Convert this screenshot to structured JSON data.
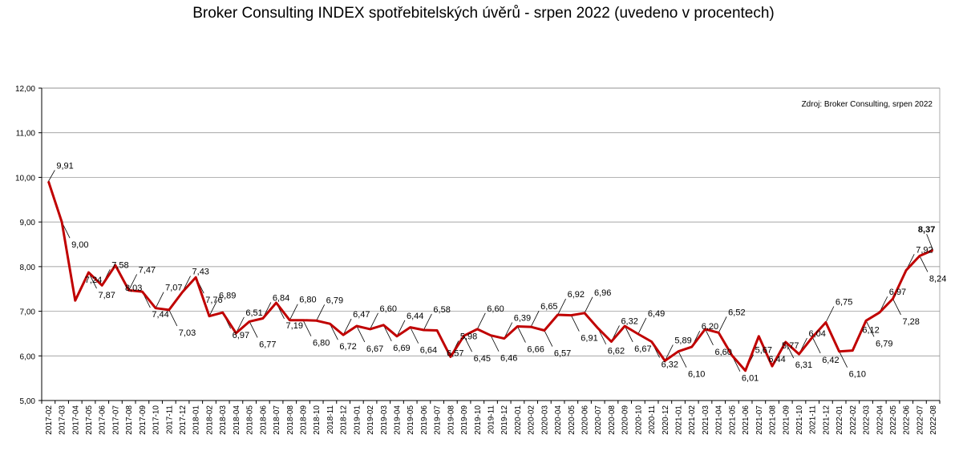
{
  "title": "Broker Consulting INDEX spotřebitelských úvěrů - srpen 2022 (uvedeno v procentech)",
  "source_note": "Zdroj: Broker Consulting, srpen 2022",
  "colors": {
    "line": "#c00000",
    "last_label": "#ff0000",
    "grid": "#888888"
  },
  "chart_data": {
    "type": "line",
    "title": "Broker Consulting INDEX spotřebitelských úvěrů - srpen 2022 (uvedeno v procentech)",
    "ylim": [
      5,
      12
    ],
    "yticks": [
      "5,00",
      "6,00",
      "7,00",
      "8,00",
      "9,00",
      "10,00",
      "11,00",
      "12,00"
    ],
    "grid": "horizontal",
    "categories": [
      "2017-02",
      "2017-03",
      "2017-04",
      "2017-05",
      "2017-06",
      "2017-07",
      "2017-08",
      "2017-09",
      "2017-10",
      "2017-11",
      "2017-12",
      "2018-01",
      "2018-02",
      "2018-03",
      "2018-04",
      "2018-05",
      "2018-06",
      "2018-07",
      "2018-08",
      "2018-09",
      "2018-10",
      "2018-11",
      "2018-12",
      "2019-01",
      "2019-02",
      "2019-03",
      "2019-04",
      "2019-05",
      "2019-06",
      "2019-07",
      "2019-08",
      "2019-09",
      "2019-10",
      "2019-11",
      "2019-12",
      "2020-01",
      "2020-02",
      "2020-03",
      "2020-04",
      "2020-05",
      "2020-06",
      "2020-07",
      "2020-08",
      "2020-09",
      "2020-10",
      "2020-11",
      "2020-12",
      "2021-01",
      "2021-02",
      "2021-03",
      "2021-04",
      "2021-05",
      "2021-06",
      "2021-07",
      "2021-08",
      "2021-09",
      "2021-10",
      "2021-11",
      "2021-12",
      "2022-01",
      "2022-02",
      "2022-03",
      "2022-04",
      "2022-05",
      "2022-06",
      "2022-07",
      "2022-08"
    ],
    "values": [
      9.91,
      9.0,
      7.24,
      7.87,
      7.58,
      8.03,
      7.47,
      7.44,
      7.07,
      7.03,
      7.43,
      7.76,
      6.89,
      6.97,
      6.51,
      6.77,
      6.84,
      7.19,
      6.8,
      6.8,
      6.79,
      6.72,
      6.47,
      6.67,
      6.6,
      6.69,
      6.44,
      6.64,
      6.58,
      6.57,
      5.98,
      6.45,
      6.6,
      6.46,
      6.39,
      6.66,
      6.65,
      6.57,
      6.92,
      6.91,
      6.96,
      6.62,
      6.32,
      6.67,
      6.49,
      6.32,
      5.89,
      6.1,
      6.2,
      6.6,
      6.52,
      6.01,
      5.67,
      6.44,
      5.77,
      6.31,
      6.04,
      6.42,
      6.75,
      6.1,
      6.12,
      6.79,
      6.97,
      7.28,
      7.92,
      8.24,
      8.37
    ],
    "labels": [
      "9,91",
      "9,00",
      "7,24",
      "7,87",
      "7,58",
      "8,03",
      "7,47",
      "7,44",
      "7,07",
      "7,03",
      "7,43",
      "7,76",
      "6,89",
      "6,97",
      "6,51",
      "6,77",
      "6,84",
      "7,19",
      "6,80",
      "6,80",
      "6,79",
      "6,72",
      "6,47",
      "6,67",
      "6,60",
      "6,69",
      "6,44",
      "6,64",
      "6,58",
      "6,57",
      "5,98",
      "6,45",
      "6,60",
      "6,46",
      "6,39",
      "6,66",
      "6,65",
      "6,57",
      "6,92",
      "6,91",
      "6,96",
      "6,62",
      "6,32",
      "6,67",
      "6,49",
      "6,32",
      "5,89",
      "6,10",
      "6,20",
      "6,60",
      "6,52",
      "6,01",
      "5,67",
      "6,44",
      "5,77",
      "6,31",
      "6,04",
      "6,42",
      "6,75",
      "6,10",
      "6,12",
      "6,79",
      "6,97",
      "7,28",
      "7,92",
      "8,24",
      "8,37"
    ]
  }
}
